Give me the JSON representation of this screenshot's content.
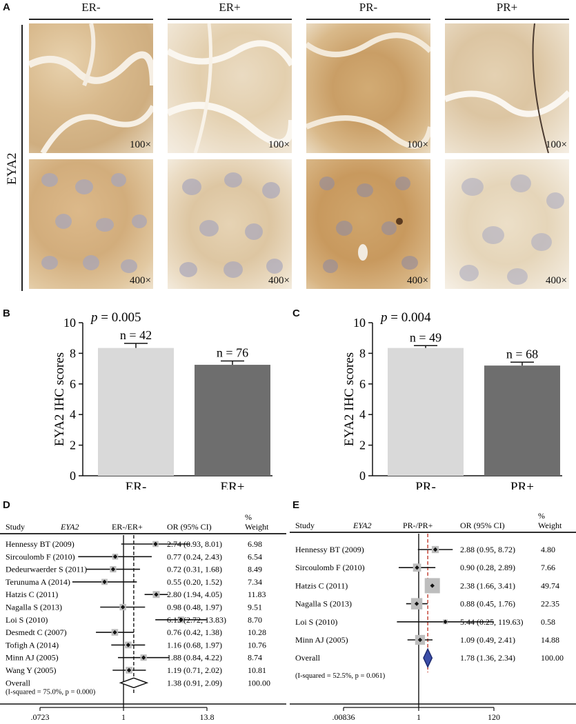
{
  "panel_a": {
    "label": "A",
    "row_label": "EYA2",
    "columns": [
      "ER-",
      "ER+",
      "PR-",
      "PR+"
    ],
    "magnifications": [
      "100×",
      "400×"
    ]
  },
  "chart_data": [
    {
      "panel": "B",
      "type": "bar",
      "categories": [
        "ER-",
        "ER+"
      ],
      "values": [
        8.35,
        7.25
      ],
      "errors": [
        0.3,
        0.25
      ],
      "n_labels": [
        "n = 42",
        "n = 76"
      ],
      "p_label": "= 0.005",
      "p_symbol": "p",
      "ylabel": "EYA2 IHC scores",
      "ylim": [
        0,
        10
      ],
      "yticks": [
        "0",
        "2",
        "4",
        "6",
        "8",
        "10"
      ],
      "colors": [
        "#d9d9d9",
        "#6e6e6e"
      ]
    },
    {
      "panel": "C",
      "type": "bar",
      "categories": [
        "PR-",
        "PR+"
      ],
      "values": [
        8.35,
        7.2
      ],
      "errors": [
        0.15,
        0.22
      ],
      "n_labels": [
        "n = 49",
        "n = 68"
      ],
      "p_label": "= 0.004",
      "p_symbol": "p",
      "ylabel": "EYA2 IHC scores",
      "ylim": [
        0,
        10
      ],
      "yticks": [
        "0",
        "2",
        "4",
        "6",
        "8",
        "10"
      ],
      "colors": [
        "#d9d9d9",
        "#6e6e6e"
      ]
    },
    {
      "panel": "D",
      "type": "forest",
      "header": {
        "study": "Study",
        "gene": "EYA2",
        "comparison": "ER-/ER+",
        "or": "OR (95% CI)",
        "pct": "%",
        "weight": "Weight"
      },
      "studies": [
        {
          "name": "Hennessy BT (2009)",
          "or": 2.74,
          "lo": 0.93,
          "hi": 8.01,
          "ci": "2.74 (0.93, 8.01)",
          "weight": "6.98"
        },
        {
          "name": "Sircoulomb F (2010)",
          "or": 0.77,
          "lo": 0.24,
          "hi": 2.43,
          "ci": "0.77 (0.24, 2.43)",
          "weight": "6.54"
        },
        {
          "name": "Dedeurwaerder S (2011)",
          "or": 0.72,
          "lo": 0.31,
          "hi": 1.68,
          "ci": "0.72 (0.31, 1.68)",
          "weight": "8.49"
        },
        {
          "name": "Terunuma A (2014)",
          "or": 0.55,
          "lo": 0.2,
          "hi": 1.52,
          "ci": "0.55 (0.20, 1.52)",
          "weight": "7.34"
        },
        {
          "name": "Hatzis C (2011)",
          "or": 2.8,
          "lo": 1.94,
          "hi": 4.05,
          "ci": "2.80 (1.94, 4.05)",
          "weight": "11.83"
        },
        {
          "name": "Nagalla S (2013)",
          "or": 0.98,
          "lo": 0.48,
          "hi": 1.97,
          "ci": "0.98 (0.48, 1.97)",
          "weight": "9.51"
        },
        {
          "name": "Loi S (2010)",
          "or": 6.13,
          "lo": 2.72,
          "hi": 13.83,
          "ci": "6.13 (2.72, 13.83)",
          "weight": "8.70"
        },
        {
          "name": "Desmedt C (2007)",
          "or": 0.76,
          "lo": 0.42,
          "hi": 1.38,
          "ci": "0.76 (0.42, 1.38)",
          "weight": "10.28"
        },
        {
          "name": "Tofigh A (2014)",
          "or": 1.16,
          "lo": 0.68,
          "hi": 1.97,
          "ci": "1.16 (0.68, 1.97)",
          "weight": "10.76"
        },
        {
          "name": "Minn AJ (2005)",
          "or": 1.88,
          "lo": 0.84,
          "hi": 4.22,
          "ci": "1.88 (0.84, 4.22)",
          "weight": "8.74"
        },
        {
          "name": "Wang Y (2005)",
          "or": 1.19,
          "lo": 0.71,
          "hi": 2.02,
          "ci": "1.19 (0.71, 2.02)",
          "weight": "10.81"
        }
      ],
      "overall": {
        "name": "Overall",
        "or": 1.38,
        "lo": 0.91,
        "hi": 2.09,
        "ci": "1.38 (0.91, 2.09)",
        "weight": "100.00"
      },
      "heterogeneity": "(I-squared = 75.0%, p = 0.000)",
      "xaxis": {
        "scale": "log",
        "min": 0.0723,
        "max": 13.8,
        "ticks": [
          ".0723",
          "1",
          "13.8"
        ]
      }
    },
    {
      "panel": "E",
      "type": "forest",
      "header": {
        "study": "Study",
        "gene": "EYA2",
        "comparison": "PR-/PR+",
        "or": "OR (95% CI)",
        "pct": "%",
        "weight": "Weight"
      },
      "studies": [
        {
          "name": "Hennessy BT (2009)",
          "or": 2.88,
          "lo": 0.95,
          "hi": 8.72,
          "ci": "2.88 (0.95, 8.72)",
          "weight": "4.80"
        },
        {
          "name": "Sircoulomb F (2010)",
          "or": 0.9,
          "lo": 0.28,
          "hi": 2.89,
          "ci": "0.90 (0.28, 2.89)",
          "weight": "7.66"
        },
        {
          "name": "Hatzis C (2011)",
          "or": 2.38,
          "lo": 1.66,
          "hi": 3.41,
          "ci": "2.38 (1.66, 3.41)",
          "weight": "49.74"
        },
        {
          "name": "Nagalla S (2013)",
          "or": 0.88,
          "lo": 0.45,
          "hi": 1.76,
          "ci": "0.88 (0.45, 1.76)",
          "weight": "22.35"
        },
        {
          "name": "Loi S (2010)",
          "or": 5.44,
          "lo": 0.25,
          "hi": 119.63,
          "ci": "5.44 (0.25, 119.63)",
          "weight": "0.58"
        },
        {
          "name": "Minn AJ (2005)",
          "or": 1.09,
          "lo": 0.49,
          "hi": 2.41,
          "ci": "1.09 (0.49, 2.41)",
          "weight": "14.88"
        }
      ],
      "overall": {
        "name": "Overall",
        "or": 1.78,
        "lo": 1.36,
        "hi": 2.34,
        "ci": "1.78 (1.36, 2.34)",
        "weight": "100.00"
      },
      "heterogeneity": "(I-squared = 52.5%, p = 0.061)",
      "xaxis": {
        "scale": "log",
        "min": 0.00836,
        "max": 120,
        "ticks": [
          ".00836",
          "1",
          "120"
        ]
      }
    }
  ]
}
